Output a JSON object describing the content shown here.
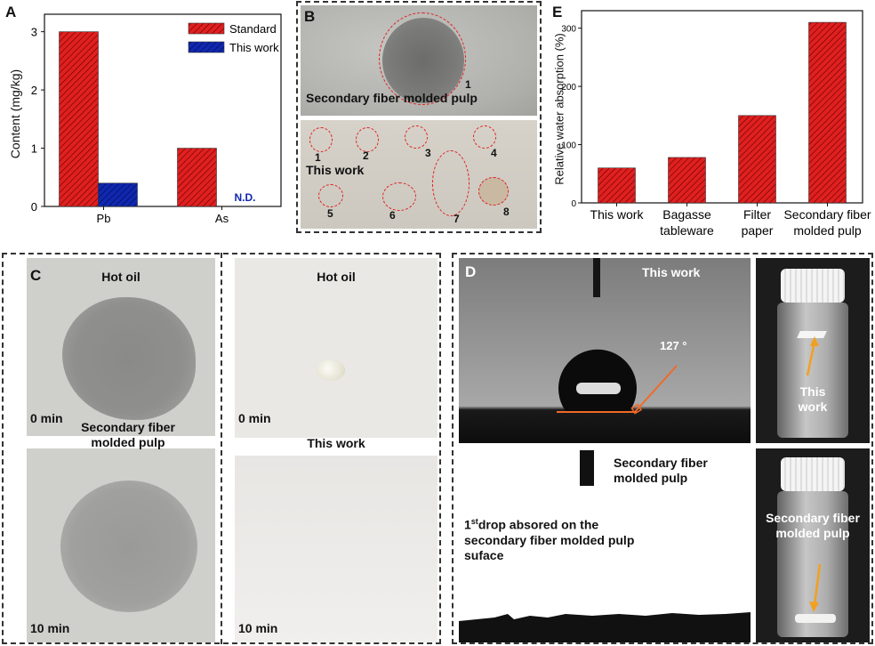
{
  "panelA": {
    "label": "A",
    "chart_data": {
      "type": "bar",
      "categories": [
        "Pb",
        "As"
      ],
      "series": [
        {
          "name": "Standard",
          "values": [
            3,
            1
          ],
          "color": "#e02020"
        },
        {
          "name": "This work",
          "values": [
            0.4,
            0
          ],
          "color": "#1028b0"
        }
      ],
      "ylabel": "Content (mg/kg)",
      "ylim": [
        0,
        3.3
      ],
      "yticks": [
        0,
        1,
        2,
        3
      ],
      "annotation": "N.D.",
      "legend": "top-right"
    }
  },
  "panelB": {
    "label": "B",
    "top_caption": "Secondary fiber molded pulp",
    "top_marker": "1",
    "bottom_caption": "This work",
    "markers": [
      "1",
      "2",
      "3",
      "4",
      "5",
      "6",
      "7",
      "8"
    ]
  },
  "panelE": {
    "label": "E",
    "chart_data": {
      "type": "bar",
      "categories": [
        "This work",
        "Bagasse tableware",
        "Filter paper",
        "Secondary fiber molded pulp"
      ],
      "category_lines": [
        [
          "This work"
        ],
        [
          "Bagasse",
          "tableware"
        ],
        [
          "Filter",
          "paper"
        ],
        [
          "Secondary fiber",
          "molded pulp"
        ]
      ],
      "values": [
        60,
        78,
        150,
        310
      ],
      "ylabel": "Relative water absorption (%)",
      "ylim": [
        0,
        330
      ],
      "yticks": [
        0,
        100,
        200,
        300
      ],
      "color": "#e02020"
    }
  },
  "panelC": {
    "label": "C",
    "left_title": "Hot oil",
    "left_mid_label": "Secondary fiber molded pulp",
    "right_title": "Hot oil",
    "right_mid_label": "This work",
    "time_0": "0 min",
    "time_10": "10 min"
  },
  "panelD": {
    "label": "D",
    "top_title": "This work",
    "angle": "127 °",
    "mid_label": "Secondary fiber molded pulp",
    "drop_text_sup": "st",
    "drop_text_1": "1",
    "drop_text_rest": "drop absored on the secondary fiber molded pulp suface",
    "vial1_label": "This work",
    "vial2_label": "Secondary fiber molded pulp"
  }
}
